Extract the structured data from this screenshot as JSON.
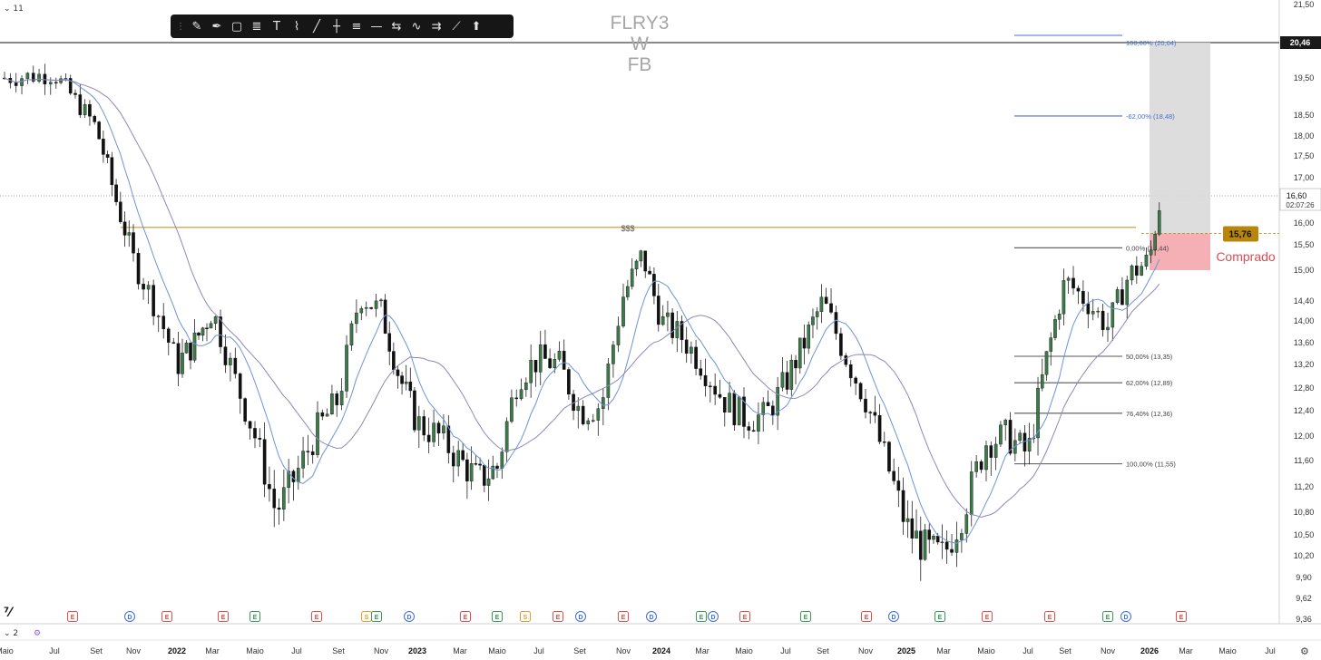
{
  "header": {
    "ticker_lines": [
      "FLRY3",
      "W",
      "FB"
    ],
    "interval_badge": "11",
    "pane2_label": "2"
  },
  "toolbar": {
    "tools": [
      "grip-icon",
      "brush-icon",
      "pen-icon",
      "rectangle-icon",
      "fib-icon",
      "text-icon",
      "path-icon",
      "trendline-icon",
      "cross-line-icon",
      "lines-icon",
      "hline-icon",
      "range-icon",
      "pattern-icon",
      "forecast-icon",
      "measure-icon",
      "marker-icon"
    ]
  },
  "colors": {
    "bull": "#3d7a4a",
    "bear": "#111111",
    "ma_fast": "#6e93d6",
    "ma_slow": "#8e87b8",
    "resistance": "#bf9a36",
    "fib_line": "#4a6fd1",
    "price_badge": "#b8860b",
    "position_zone": "#d9d9d9",
    "stop_zone": "#f4a7ad",
    "comprado": "#e04a55"
  },
  "chart_data": {
    "type": "candlestick",
    "symbol": "FLRY3",
    "interval": "W",
    "exchange": "FB",
    "y_axis": {
      "ticks": [
        "21,50",
        "20,46",
        "19,50",
        "18,50",
        "18,00",
        "17,50",
        "17,00",
        "16,60",
        "16,00",
        "15,50",
        "15,00",
        "14,40",
        "14,00",
        "13,60",
        "13,20",
        "12,80",
        "12,40",
        "12,00",
        "11,60",
        "11,20",
        "10,80",
        "10,50",
        "10,20",
        "9,90",
        "9,62",
        "9,36"
      ],
      "ylim": [
        9.36,
        21.5
      ]
    },
    "x_axis": {
      "ticks": [
        "Maio",
        "Jul",
        "Set",
        "Nov",
        "2022",
        "Mar",
        "Maio",
        "Jul",
        "Set",
        "Nov",
        "2023",
        "Mar",
        "Maio",
        "Jul",
        "Set",
        "Nov",
        "2024",
        "Mar",
        "Maio",
        "Jul",
        "Set",
        "Nov",
        "2025",
        "Mar",
        "Maio",
        "Jul",
        "Set",
        "Nov",
        "2026",
        "Mar",
        "Maio",
        "Jul"
      ],
      "bold_ticks": [
        "2022",
        "2023",
        "2024",
        "2025",
        "2026"
      ]
    },
    "price_anchors": [
      [
        "2021-05",
        19.5
      ],
      [
        "2021-07",
        19.6
      ],
      [
        "2021-09",
        18.2
      ],
      [
        "2021-10",
        16.6
      ],
      [
        "2021-11",
        15.2
      ],
      [
        "2021-12",
        14.3
      ],
      [
        "2022-01",
        13.2
      ],
      [
        "2022-02",
        13.6
      ],
      [
        "2022-03",
        14.2
      ],
      [
        "2022-04",
        13.0
      ],
      [
        "2022-05",
        12.0
      ],
      [
        "2022-06",
        10.8
      ],
      [
        "2022-07",
        11.4
      ],
      [
        "2022-08",
        12.1
      ],
      [
        "2022-09",
        12.6
      ],
      [
        "2022-10",
        14.5
      ],
      [
        "2022-11",
        14.2
      ],
      [
        "2022-12",
        13.0
      ],
      [
        "2023-01",
        12.2
      ],
      [
        "2023-02",
        12.0
      ],
      [
        "2023-03",
        11.6
      ],
      [
        "2023-04",
        11.3
      ],
      [
        "2023-05",
        11.5
      ],
      [
        "2023-06",
        13.0
      ],
      [
        "2023-07",
        13.3
      ],
      [
        "2023-08",
        13.2
      ],
      [
        "2023-09",
        12.4
      ],
      [
        "2023-10",
        12.5
      ],
      [
        "2023-11",
        14.5
      ],
      [
        "2023-12",
        15.3
      ],
      [
        "2024-01",
        14.0
      ],
      [
        "2024-02",
        13.7
      ],
      [
        "2024-03",
        13.2
      ],
      [
        "2024-04",
        12.6
      ],
      [
        "2024-05",
        12.3
      ],
      [
        "2024-06",
        12.3
      ],
      [
        "2024-07",
        12.9
      ],
      [
        "2024-08",
        13.6
      ],
      [
        "2024-09",
        14.4
      ],
      [
        "2024-10",
        13.4
      ],
      [
        "2024-11",
        12.6
      ],
      [
        "2024-12",
        11.6
      ],
      [
        "2025-01",
        10.6
      ],
      [
        "2025-02",
        10.3
      ],
      [
        "2025-03",
        10.2
      ],
      [
        "2025-04",
        10.9
      ],
      [
        "2025-05",
        11.9
      ],
      [
        "2025-06",
        12.0
      ],
      [
        "2025-07",
        11.7
      ],
      [
        "2025-08",
        13.3
      ],
      [
        "2025-09",
        14.8
      ],
      [
        "2025-10",
        14.4
      ],
      [
        "2025-11",
        13.9
      ],
      [
        "2025-12",
        14.9
      ],
      [
        "2026-01",
        15.2
      ],
      [
        "2026-01-20",
        16.6
      ]
    ],
    "resistance": {
      "label": "$$$",
      "price": 15.9
    },
    "fibonacci": [
      {
        "label": "100,00% (20,64)",
        "price": 20.64
      },
      {
        "label": "-62,00% (18,48)",
        "price": 18.48
      },
      {
        "label": "0,00% (15,44)",
        "price": 15.44
      },
      {
        "label": "50,00% (13,35)",
        "price": 13.35
      },
      {
        "label": "62,00% (12,89)",
        "price": 12.89
      },
      {
        "label": "76,40% (12,36)",
        "price": 12.36
      },
      {
        "label": "100,00% (11,55)",
        "price": 11.55
      }
    ],
    "position": {
      "label": "Comprado",
      "entry": 15.76,
      "entry_label": "15,76",
      "stop": 15.0,
      "target": 20.46
    },
    "last_price": {
      "price": "16,60",
      "countdown": "02:07:26"
    },
    "high_marker": "20,46",
    "events": [
      "E",
      "D",
      "E",
      "E",
      "E",
      "E",
      "S",
      "E",
      "D",
      "E",
      "E",
      "S",
      "E",
      "D",
      "E",
      "D",
      "E",
      "D",
      "E",
      "E",
      "E",
      "D",
      "E",
      "E",
      "E",
      "E",
      "D",
      "E"
    ]
  }
}
